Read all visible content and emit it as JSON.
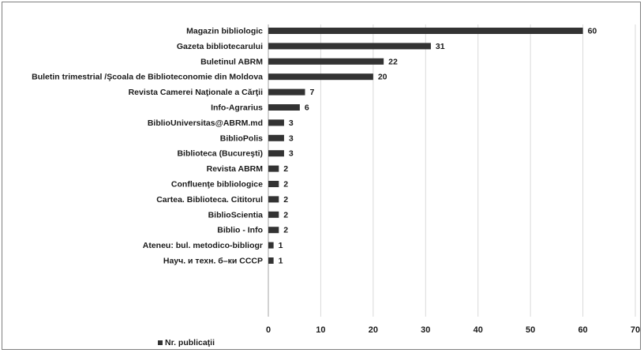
{
  "chart_data": {
    "type": "bar",
    "orientation": "horizontal",
    "categories": [
      "Magazin bibliologic",
      "Gazeta bibliotecarului",
      "Buletinul ABRM",
      "Buletin trimestrial /Şcoala de Biblioteconomie din Moldova",
      "Revista Camerei Naţionale a Cărţii",
      "Info-Agrarius",
      "BiblioUniversitas@ABRM.md",
      "BiblioPolis",
      "Biblioteca (Bucureşti)",
      "Revista ABRM",
      "Confluenţe bibliologice",
      "Cartea. Biblioteca. Cititorul",
      "BiblioScientia",
      "Biblio - Info",
      "Ateneu: bul. metodico-bibliogr",
      "Науч. и техн. б–ки СССР"
    ],
    "series": [
      {
        "name": "Nr. publicaţii",
        "values": [
          60,
          31,
          22,
          20,
          7,
          6,
          3,
          3,
          3,
          2,
          2,
          2,
          2,
          2,
          1,
          1
        ]
      }
    ],
    "xlim": [
      0,
      70
    ],
    "xticks": [
      0,
      10,
      20,
      30,
      40,
      50,
      60,
      70
    ],
    "grid": "vertical",
    "legend": "bottom-left",
    "bar_color": "#333333"
  }
}
